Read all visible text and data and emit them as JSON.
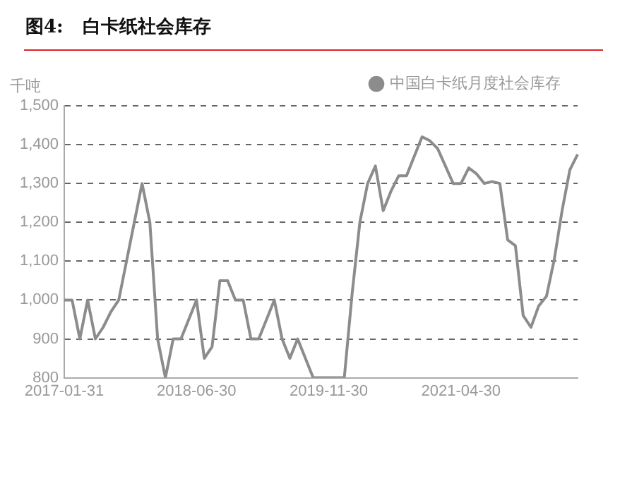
{
  "chart_data": {
    "type": "line",
    "title": "图4:   白卡纸社会库存",
    "ylabel": "千吨",
    "categories": [
      "2017-01-31",
      null,
      null,
      null,
      null,
      null,
      null,
      null,
      null,
      null,
      null,
      null,
      null,
      null,
      null,
      null,
      null,
      "2018-06-30",
      null,
      null,
      null,
      null,
      null,
      null,
      null,
      null,
      null,
      null,
      null,
      null,
      null,
      null,
      null,
      null,
      "2019-11-30",
      null,
      null,
      null,
      null,
      null,
      null,
      null,
      null,
      null,
      null,
      null,
      null,
      null,
      null,
      null,
      null,
      "2021-04-30",
      null,
      null,
      null,
      null,
      null,
      null,
      null,
      null,
      null,
      null,
      null,
      null,
      null,
      null,
      null
    ],
    "series": [
      {
        "name": "中国白卡纸月度社会库存",
        "color": "#8c8c8c",
        "values": [
          1000,
          1000,
          900,
          1000,
          900,
          930,
          970,
          1000,
          1100,
          1200,
          1300,
          1200,
          900,
          800,
          900,
          900,
          950,
          1000,
          850,
          880,
          1050,
          1050,
          1000,
          1000,
          900,
          900,
          950,
          1000,
          900,
          850,
          900,
          850,
          800,
          800,
          800,
          800,
          800,
          1015,
          1200,
          1300,
          1345,
          1230,
          1280,
          1320,
          1320,
          1370,
          1420,
          1410,
          1390,
          1345,
          1300,
          1300,
          1340,
          1325,
          1300,
          1305,
          1300,
          1155,
          1140,
          960,
          930,
          985,
          1010,
          1105,
          1230,
          1335,
          1375
        ]
      }
    ],
    "ylim": [
      800,
      1500
    ],
    "yticks": [
      {
        "value": 800,
        "label": "800"
      },
      {
        "value": 900,
        "label": "900"
      },
      {
        "value": 1000,
        "label": "1,000"
      },
      {
        "value": 1100,
        "label": "1,100"
      },
      {
        "value": 1200,
        "label": "1,200"
      },
      {
        "value": 1300,
        "label": "1,300"
      },
      {
        "value": 1400,
        "label": "1,400"
      },
      {
        "value": 1500,
        "label": "1,500"
      }
    ],
    "grid": "y",
    "legend": "top right",
    "line_style": "solid"
  }
}
